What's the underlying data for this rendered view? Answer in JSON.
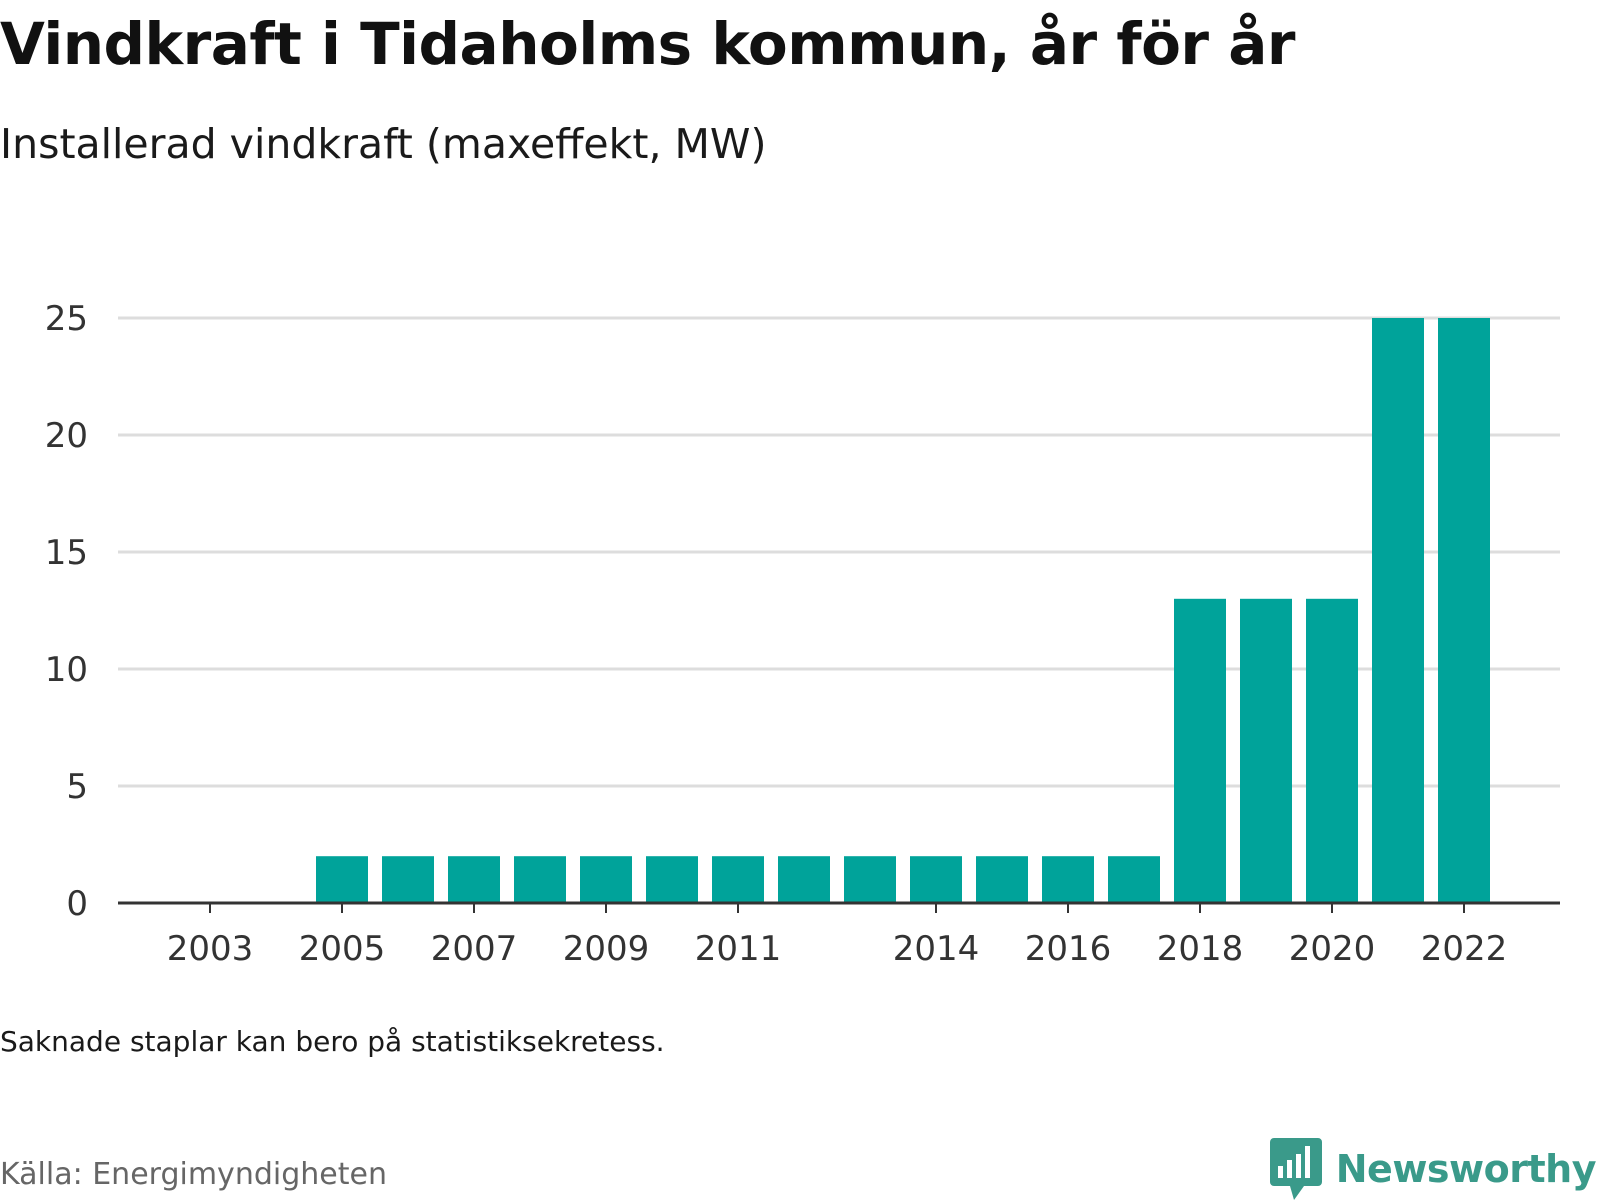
{
  "title": "Vindkraft i Tidaholms kommun, år för år",
  "subtitle": "Installerad vindkraft (maxeffekt, MW)",
  "note": "Saknade staplar kan bero på statistiksekretess.",
  "source": "Källa: Energimyndigheten",
  "logo": {
    "text": "Newsworthy",
    "icon": "bar-chart-speech-bubble-icon"
  },
  "colors": {
    "bar": "#00a39a",
    "gridline": "#dddddd",
    "axis": "#333333",
    "logo": "#3a9a8a"
  },
  "chart_data": {
    "type": "bar",
    "title": "Vindkraft i Tidaholms kommun, år för år",
    "subtitle": "Installerad vindkraft (maxeffekt, MW)",
    "categories": [
      2003,
      2004,
      2005,
      2006,
      2007,
      2008,
      2009,
      2010,
      2011,
      2012,
      2013,
      2014,
      2015,
      2016,
      2017,
      2018,
      2019,
      2020,
      2021,
      2022
    ],
    "values": [
      null,
      null,
      2,
      2,
      2,
      2,
      2,
      2,
      2,
      2,
      2,
      2,
      2,
      2,
      2,
      13,
      13,
      13,
      25,
      25
    ],
    "x_tick_labels": [
      "2003",
      "2005",
      "2007",
      "2009",
      "2011",
      "2014",
      "2016",
      "2018",
      "2020",
      "2022"
    ],
    "y_ticks": [
      0,
      5,
      10,
      15,
      20,
      25
    ],
    "ylim": [
      0,
      25
    ],
    "grid": true,
    "legend": "none"
  }
}
